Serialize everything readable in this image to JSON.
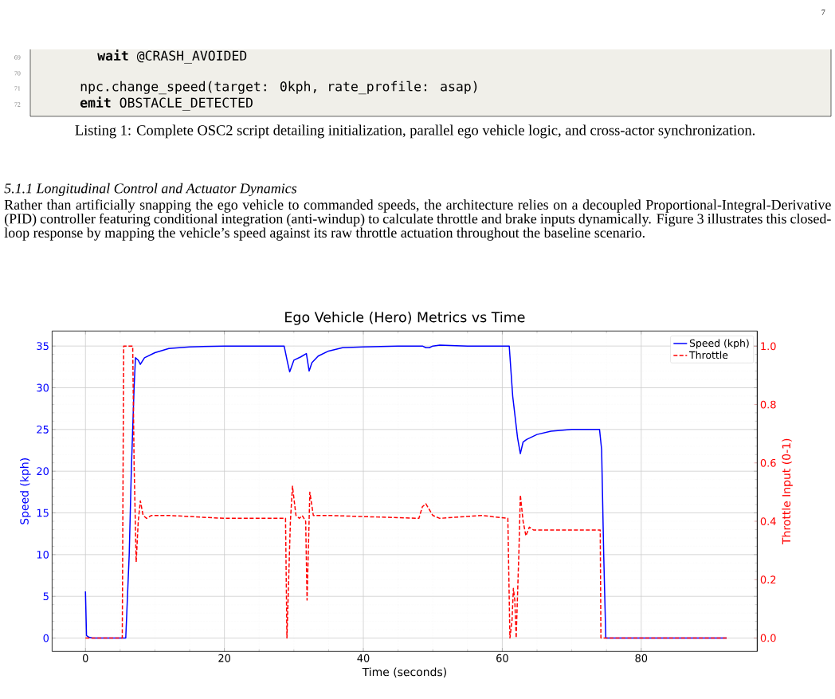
{
  "chart_data": {
    "type": "line",
    "title": "Ego Vehicle (Hero) Metrics vs Time",
    "xlabel": "Time (seconds)",
    "ylabel": "Speed (kph)",
    "y2label": "Throttle Input (0-1)",
    "annotations": [
      "7",
      "69",
      "70",
      "71",
      "72",
      "**wait** @CRASH_AVOIDED",
      "npc.change_speed(target: 0kph, rate_profile: asap)",
      "**emit** OBSTACLE_DETECTED",
      "Listing 1: Complete OSC2 script detailing initialization, parallel ego vehicle logic, and cross-actor synchronization.",
      "5.1.1 Longitudinal Control and Actuator Dynamics",
      "Rather than artificially snapping the ego vehicle to commanded speeds, the architecture relies on a decoupled Proportional-Integral-Derivative (PID) controller featuring conditional integration (anti-windup) to calculate throttle and brake inputs dynamically. Figure 3 illustrates this closed-loop response by mapping the vehicle’s speed against its raw throttle actuation throughout the baseline scenario."
    ],
    "series": [
      {
        "name": "Speed (kph)",
        "color": "#0000ff",
        "line_style": "solid",
        "x": [
          0,
          0.15,
          0.5,
          1,
          5.8,
          6.3,
          6.6,
          7.0,
          7.2,
          7.6,
          7.9,
          8.5,
          10,
          12,
          15,
          20,
          28.6,
          29.1,
          29.4,
          30,
          31,
          31.8,
          32.2,
          32.6,
          33.5,
          35,
          37,
          40,
          45,
          48.5,
          49,
          49.5,
          50,
          51,
          55,
          61,
          61.5,
          62.2,
          62.6,
          63,
          63.5,
          65,
          67,
          70,
          74,
          74.3,
          74.6,
          74.9,
          92.3
        ],
        "values": [
          5.6,
          0.3,
          0.1,
          0,
          0,
          10,
          20,
          30,
          33.6,
          33.3,
          32.8,
          33.6,
          34.2,
          34.7,
          34.9,
          35,
          35,
          33,
          31.9,
          33.3,
          33.7,
          34.1,
          32,
          33,
          33.8,
          34.4,
          34.8,
          34.9,
          35,
          35,
          34.8,
          34.8,
          35,
          35.1,
          35,
          35,
          29,
          24,
          22.1,
          23.5,
          23.8,
          24.4,
          24.8,
          25,
          25,
          22.6,
          10,
          0,
          0
        ]
      },
      {
        "name": "Throttle",
        "color": "#ff0000",
        "line_style": "dashed",
        "axis": "y2",
        "x": [
          0,
          5.3,
          5.5,
          6.8,
          7.0,
          7.3,
          7.6,
          7.9,
          8.3,
          8.8,
          9.5,
          12,
          20,
          28.8,
          29.0,
          29.5,
          29.8,
          30.3,
          30.8,
          31.2,
          31.7,
          31.9,
          32.3,
          32.8,
          33.3,
          33.8,
          35,
          48,
          48.5,
          49,
          49.5,
          50,
          51,
          57,
          60.8,
          61.1,
          61.4,
          61.6,
          61.8,
          62.0,
          62.4,
          62.6,
          63.0,
          63.4,
          63.9,
          64.5,
          70,
          74.1,
          74.2,
          92.3
        ],
        "values": [
          0,
          0,
          1.0,
          1.0,
          0.6,
          0.26,
          0.4,
          0.47,
          0.42,
          0.41,
          0.42,
          0.42,
          0.41,
          0.41,
          0,
          0.4,
          0.52,
          0.42,
          0.41,
          0.42,
          0.4,
          0.13,
          0.5,
          0.42,
          0.42,
          0.42,
          0.42,
          0.41,
          0.45,
          0.46,
          0.44,
          0.42,
          0.41,
          0.42,
          0.41,
          0,
          0.06,
          0.17,
          0.13,
          0,
          0.3,
          0.49,
          0.4,
          0.35,
          0.38,
          0.37,
          0.37,
          0.37,
          0,
          0
        ]
      }
    ],
    "xlim": [
      -4.8,
      96.7
    ],
    "ylim": [
      -1.6,
      36.8
    ],
    "y2lim": [
      -0.046,
      1.052
    ],
    "xticks": [
      0,
      20,
      40,
      60,
      80
    ],
    "yticks": [
      0,
      5,
      10,
      15,
      20,
      25,
      30,
      35
    ],
    "y2ticks": [
      {
        "value": 0,
        "label": "0.0"
      },
      {
        "value": 0.2,
        "label": "0.2"
      },
      {
        "value": 0.4,
        "label": "0.4"
      },
      {
        "value": 0.6,
        "label": "0.6"
      },
      {
        "value": 0.8,
        "label": "0.8"
      },
      {
        "value": 1.0,
        "label": "1.0"
      }
    ],
    "grid": true,
    "legend": "top right"
  }
}
